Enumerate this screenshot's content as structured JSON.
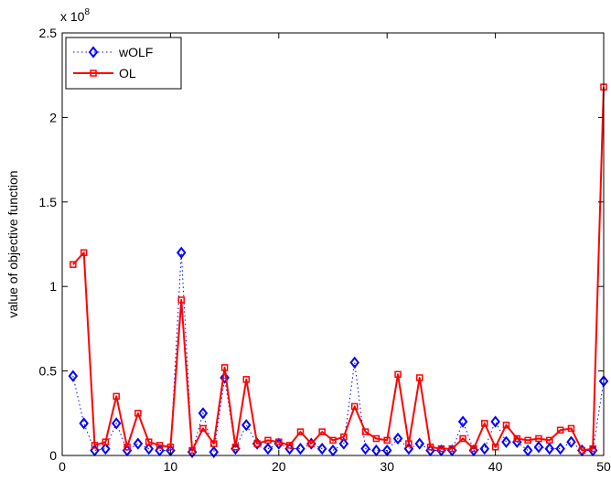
{
  "chart_data": {
    "type": "line",
    "ylabel": "value of objective function",
    "xlabel": "",
    "xlim": [
      0,
      50
    ],
    "ylim": [
      0,
      2.5
    ],
    "y_multiplier": "x 10",
    "y_multiplier_exponent": "8",
    "x_ticks": [
      0,
      10,
      20,
      30,
      40,
      50
    ],
    "y_ticks": [
      0,
      0.5,
      1,
      1.5,
      2,
      2.5
    ],
    "x_tick_labels": [
      "0",
      "10",
      "20",
      "30",
      "40",
      "50"
    ],
    "y_tick_labels": [
      "0",
      "0.5",
      "1",
      "1.5",
      "2",
      "2.5"
    ],
    "grid": false,
    "legend_position": "top-left",
    "x": [
      1,
      2,
      3,
      4,
      5,
      6,
      7,
      8,
      9,
      10,
      11,
      12,
      13,
      14,
      15,
      16,
      17,
      18,
      19,
      20,
      21,
      22,
      23,
      24,
      25,
      26,
      27,
      28,
      29,
      30,
      31,
      32,
      33,
      34,
      35,
      36,
      37,
      38,
      39,
      40,
      41,
      42,
      43,
      44,
      45,
      46,
      47,
      48,
      49,
      50
    ],
    "series": [
      {
        "name": "wOLF",
        "color": "#0000ff",
        "marker": "diamond",
        "line_style": "dotted",
        "values": [
          0.47,
          0.19,
          0.03,
          0.04,
          0.19,
          0.03,
          0.07,
          0.04,
          0.03,
          0.03,
          1.2,
          0.02,
          0.25,
          0.02,
          0.46,
          0.04,
          0.18,
          0.07,
          0.04,
          0.07,
          0.04,
          0.04,
          0.07,
          0.04,
          0.03,
          0.07,
          0.55,
          0.04,
          0.03,
          0.03,
          0.1,
          0.04,
          0.07,
          0.03,
          0.03,
          0.03,
          0.2,
          0.03,
          0.04,
          0.2,
          0.08,
          0.08,
          0.03,
          0.05,
          0.04,
          0.04,
          0.08,
          0.03,
          0.03,
          0.44
        ]
      },
      {
        "name": "OL",
        "color": "#ff0000",
        "marker": "square",
        "line_style": "solid",
        "values": [
          1.13,
          1.2,
          0.06,
          0.08,
          0.35,
          0.05,
          0.25,
          0.08,
          0.06,
          0.05,
          0.92,
          0.03,
          0.16,
          0.07,
          0.52,
          0.05,
          0.45,
          0.07,
          0.09,
          0.08,
          0.06,
          0.14,
          0.07,
          0.14,
          0.09,
          0.11,
          0.29,
          0.14,
          0.1,
          0.09,
          0.48,
          0.07,
          0.46,
          0.05,
          0.04,
          0.04,
          0.1,
          0.04,
          0.19,
          0.05,
          0.18,
          0.1,
          0.09,
          0.1,
          0.09,
          0.15,
          0.16,
          0.03,
          0.04,
          2.18
        ]
      }
    ]
  }
}
